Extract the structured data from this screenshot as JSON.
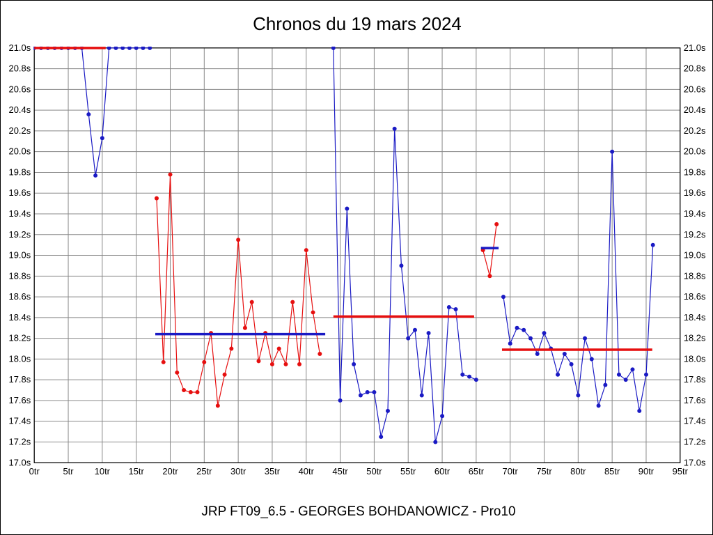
{
  "title": "Chronos du 19 mars 2024",
  "footer": "JRP FT09_6.5 - GEORGES BOHDANOWICZ - Pro10",
  "chart_data": {
    "type": "line",
    "title": "Chronos du 19 mars 2024",
    "xlabel": "",
    "ylabel": "",
    "x_unit": "tr",
    "y_unit": "s",
    "xlim": [
      0,
      95
    ],
    "ylim": [
      17.0,
      21.0
    ],
    "x_tick_step": 5,
    "y_tick_step": 0.2,
    "grid": true,
    "legend": "none",
    "x_tick_labels": [
      "0tr",
      "5tr",
      "10tr",
      "15tr",
      "20tr",
      "25tr",
      "30tr",
      "35tr",
      "40tr",
      "45tr",
      "50tr",
      "55tr",
      "60tr",
      "65tr",
      "70tr",
      "75tr",
      "80tr",
      "85tr",
      "90tr",
      "95tr"
    ],
    "y_tick_labels": [
      "17.0s",
      "17.2s",
      "17.4s",
      "17.6s",
      "17.8s",
      "18.0s",
      "18.2s",
      "18.4s",
      "18.6s",
      "18.8s",
      "19.0s",
      "19.2s",
      "19.4s",
      "19.6s",
      "19.8s",
      "20.0s",
      "20.2s",
      "20.4s",
      "20.6s",
      "20.8s",
      "21.0s"
    ],
    "colors": {
      "blue": "#1a1ac4",
      "red": "#e60f0f",
      "grid": "#888888",
      "frame": "#000000"
    },
    "series": [
      {
        "name": "run-1-lap-times",
        "color": "blue",
        "x": [
          0,
          1,
          2,
          3,
          4,
          5,
          6,
          7,
          8,
          9,
          10,
          11,
          12,
          13,
          14,
          15,
          16,
          17
        ],
        "y": [
          21.0,
          21.0,
          21.0,
          21.0,
          21.0,
          21.0,
          21.0,
          21.0,
          20.36,
          19.77,
          20.13,
          21.0,
          21.0,
          21.0,
          21.0,
          21.0,
          21.0,
          21.0
        ]
      },
      {
        "name": "run-2-lap-times",
        "color": "red",
        "x": [
          18,
          19,
          20,
          21,
          22,
          23,
          24,
          25,
          26,
          27,
          28,
          29,
          30,
          31,
          32,
          33,
          34,
          35,
          36,
          37,
          38,
          39,
          40,
          41,
          42
        ],
        "y": [
          19.55,
          17.97,
          19.78,
          17.87,
          17.7,
          17.68,
          17.68,
          17.97,
          18.25,
          17.55,
          17.85,
          18.1,
          19.15,
          18.3,
          18.55,
          17.98,
          18.25,
          17.95,
          18.1,
          17.95,
          18.55,
          17.95,
          19.05,
          18.45,
          18.05
        ]
      },
      {
        "name": "run-3-lap-times",
        "color": "blue",
        "x": [
          44,
          45,
          46,
          47,
          48,
          49,
          50,
          51,
          52,
          53,
          54,
          55,
          56,
          57,
          58,
          59,
          60,
          61,
          62,
          63,
          64,
          65
        ],
        "y": [
          21.0,
          17.6,
          19.45,
          17.95,
          17.65,
          17.68,
          17.68,
          17.25,
          17.5,
          20.22,
          18.9,
          18.2,
          18.28,
          17.65,
          18.25,
          17.2,
          17.45,
          18.5,
          18.48,
          17.85,
          17.83,
          17.8
        ]
      },
      {
        "name": "run-4-lap-times",
        "color": "red",
        "x": [
          66,
          67,
          68
        ],
        "y": [
          19.05,
          18.8,
          19.3
        ]
      },
      {
        "name": "run-5-lap-times",
        "color": "blue",
        "x": [
          69,
          70,
          71,
          72,
          73,
          74,
          75,
          76,
          77,
          78,
          79,
          80,
          81,
          82,
          83,
          84,
          85,
          86,
          87,
          88,
          89,
          90,
          91
        ],
        "y": [
          18.6,
          18.15,
          18.3,
          18.28,
          18.2,
          18.05,
          18.25,
          18.1,
          17.85,
          18.05,
          17.95,
          17.65,
          18.2,
          18.0,
          17.55,
          17.75,
          20.0,
          17.85,
          17.8,
          17.9,
          17.5,
          17.85,
          19.1
        ]
      }
    ],
    "average_lines": [
      {
        "name": "run-1-average-line",
        "color": "red",
        "y": 21.0,
        "x_start": 0,
        "x_end": 10.5
      },
      {
        "name": "run-2-average-line",
        "color": "blue",
        "y": 18.24,
        "x_start": 17.8,
        "x_end": 42.8
      },
      {
        "name": "run-3-average-line",
        "color": "red",
        "y": 18.41,
        "x_start": 44.0,
        "x_end": 64.7
      },
      {
        "name": "run-4-average-line",
        "color": "blue",
        "y": 19.07,
        "x_start": 65.7,
        "x_end": 68.3
      },
      {
        "name": "run-5-average-line",
        "color": "red",
        "y": 18.09,
        "x_start": 68.8,
        "x_end": 90.9
      }
    ]
  }
}
